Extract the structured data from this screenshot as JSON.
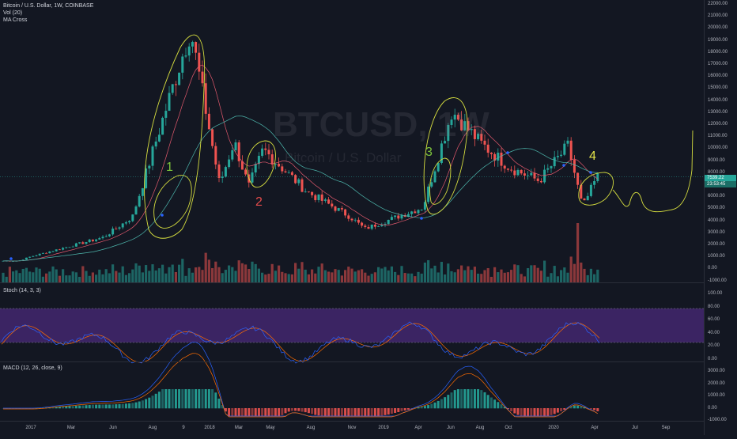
{
  "header": {
    "symbol_line": "Bitcoin / U.S. Dollar, 1W, COINBASE",
    "indicator_vol": "Vol (20)",
    "indicator_ma": "MA Cross"
  },
  "watermark": {
    "ticker": "BTCUSD, 1W",
    "name": "Bitcoin / U.S. Dollar"
  },
  "annotations": [
    {
      "label": "1",
      "color": "#7cc43b"
    },
    {
      "label": "2",
      "color": "#e24b4b"
    },
    {
      "label": "3",
      "color": "#7cc43b"
    },
    {
      "label": "4",
      "color": "#e6e64a"
    }
  ],
  "price_axis": [
    "22000.00",
    "21000.00",
    "20000.00",
    "19000.00",
    "18000.00",
    "17000.00",
    "16000.00",
    "15000.00",
    "14000.00",
    "13000.00",
    "12000.00",
    "11000.00",
    "10000.00",
    "9000.00",
    "8000.00",
    "7000.00",
    "6000.00",
    "5000.00",
    "4000.00",
    "3000.00",
    "2000.00",
    "1000.00",
    "0.00",
    "-1000.00"
  ],
  "price_tags": {
    "last_price": "7539.22",
    "countdown": "23:53:45",
    "last_color": "#26a69a"
  },
  "stoch": {
    "label": "Stoch (14, 3, 3)",
    "axis": [
      "100.00",
      "80.00",
      "60.00",
      "40.00",
      "20.00",
      "0.00"
    ]
  },
  "macd": {
    "label": "MACD (12, 26, close, 9)",
    "axis": [
      "3000.00",
      "2000.00",
      "1000.00",
      "0.00",
      "-1000.00"
    ]
  },
  "time_axis": [
    "2017",
    "Mar",
    "Jun",
    "Aug",
    "9",
    "2018",
    "Mar",
    "May",
    "Aug",
    "Nov",
    "2019",
    "Apr",
    "Jun",
    "Aug",
    "Oct",
    "2020",
    "Apr",
    "Jul",
    "Sep"
  ],
  "colors": {
    "background": "#131722",
    "up": "#26a69a",
    "down": "#ef5350",
    "stoch_band": "#4a2a7a",
    "k_line": "#2962ff",
    "d_line": "#ff6d00",
    "drawing": "#d6de3f"
  },
  "chart_data": {
    "type": "candlestick",
    "title": "Bitcoin / U.S. Dollar, 1W, COINBASE",
    "xlabel": "",
    "ylabel": "",
    "ylim": [
      -1000,
      22000
    ],
    "key_points": [
      {
        "x": "2017-01",
        "price": 900
      },
      {
        "x": "2017-06",
        "price": 2500
      },
      {
        "x": "2017-08",
        "price": 4200
      },
      {
        "x": "2017-12",
        "price": 19800
      },
      {
        "x": "2018-02",
        "price": 6900
      },
      {
        "x": "2018-03",
        "price": 10500
      },
      {
        "x": "2018-04",
        "price": 6700
      },
      {
        "x": "2018-05",
        "price": 9800
      },
      {
        "x": "2018-08",
        "price": 6300
      },
      {
        "x": "2018-11",
        "price": 4200
      },
      {
        "x": "2018-12",
        "price": 3200
      },
      {
        "x": "2019-04",
        "price": 5000
      },
      {
        "x": "2019-06",
        "price": 13000
      },
      {
        "x": "2019-08",
        "price": 10300
      },
      {
        "x": "2019-10",
        "price": 8300
      },
      {
        "x": "2019-12",
        "price": 7200
      },
      {
        "x": "2020-02",
        "price": 10100
      },
      {
        "x": "2020-03",
        "price": 5000
      },
      {
        "x": "2020-04",
        "price": 7539.22
      }
    ],
    "grid": false,
    "legend": "top-left"
  }
}
